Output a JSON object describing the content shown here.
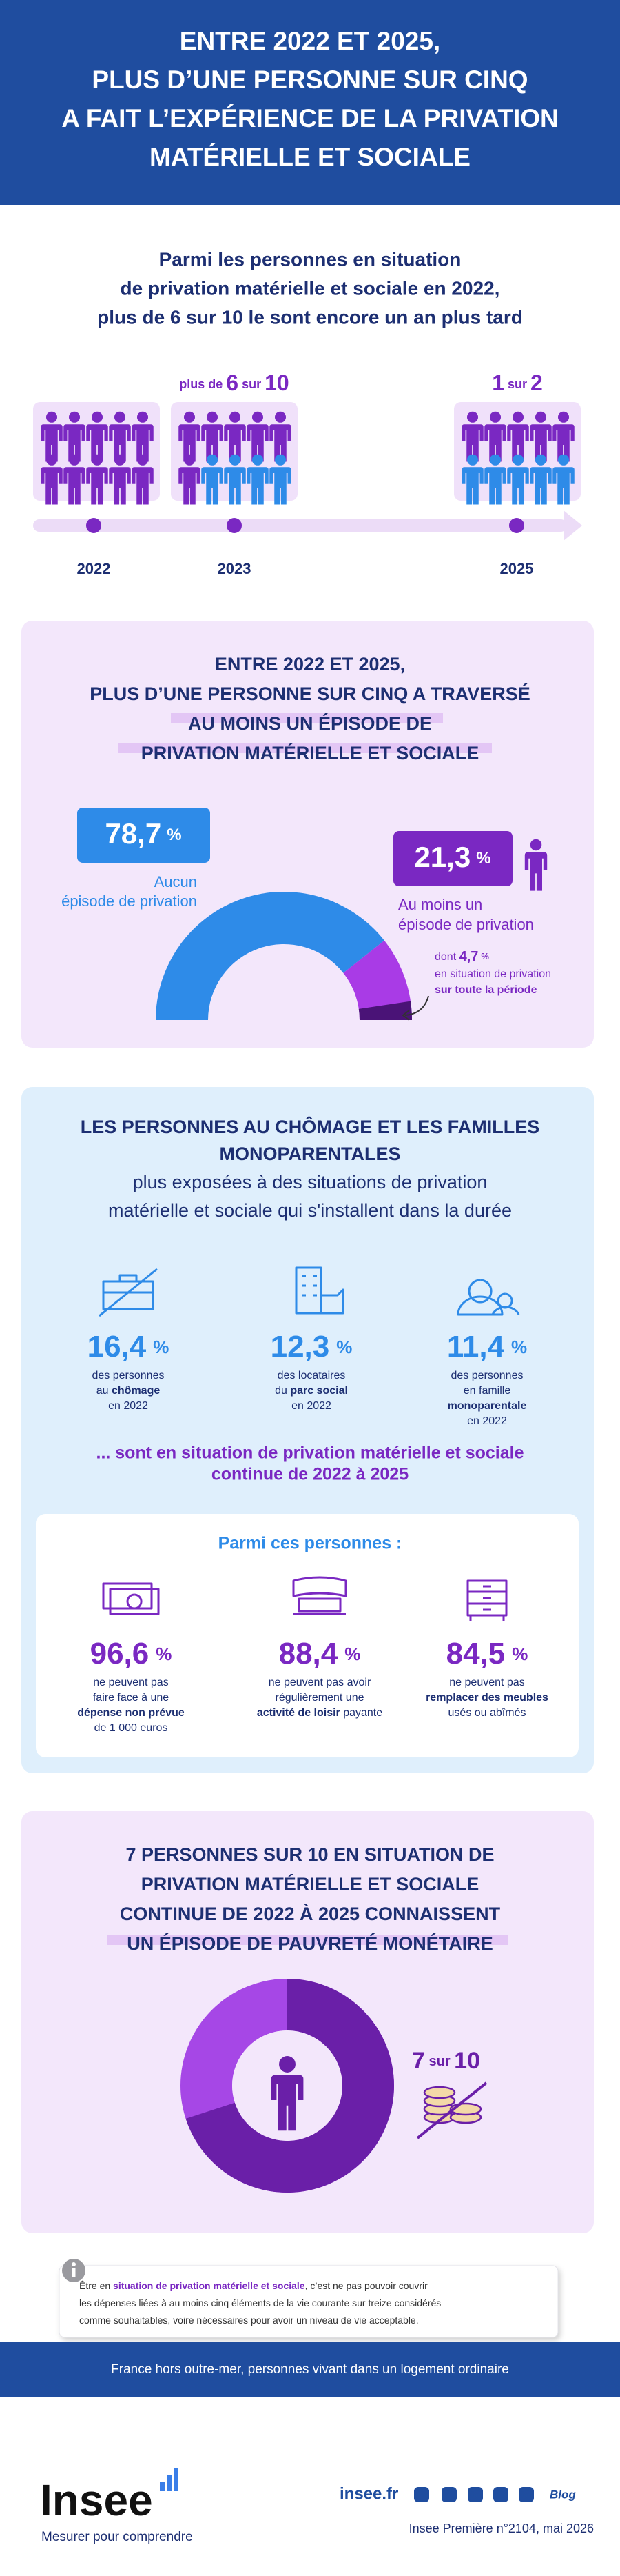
{
  "header": {
    "title": [
      "ENTRE 2022 ET 2025,",
      "PLUS D’UNE PERSONNE SUR CINQ",
      "A FAIT L’EXPÉRIENCE DE LA PRIVATION",
      "MATÉRIELLE ET SOCIALE"
    ]
  },
  "persistence": {
    "title": [
      "Parmi les personnes en situation",
      "de privation matérielle et sociale en 2022,",
      "plus de 6 sur 10 le sont encore un an plus tard"
    ],
    "groups": [
      {
        "year": "2022"
      },
      {
        "year": "2023",
        "label": [
          {
            "text": "plus de "
          },
          {
            "text": "6",
            "big": true
          },
          {
            "text": " sur "
          },
          {
            "text": "10",
            "big": true
          }
        ]
      },
      {
        "year": "2025",
        "label": [
          {
            "text": "1",
            "big": true
          },
          {
            "text": " sur "
          },
          {
            "text": "2",
            "big": true
          }
        ]
      }
    ]
  },
  "episode": {
    "title": [
      "ENTRE 2022 ET 2025,",
      "PLUS D’UNE PERSONNE SUR CINQ A TRAVERSÉ",
      "AU MOINS UN ÉPISODE DE",
      "PRIVATION MATÉRIELLE ET SOCIALE"
    ],
    "none": {
      "value": 78.7,
      "label": "78,7",
      "unit": "%",
      "text": [
        "Aucun",
        "épisode de privation"
      ]
    },
    "some": {
      "value": 21.3,
      "label": "21,3",
      "unit": "%",
      "text": [
        "Au moins un",
        "épisode de privation"
      ]
    },
    "whole": {
      "prefix": "dont ",
      "value": 4.7,
      "label": "4,7",
      "unit": "%",
      "text": [
        "en situation de privation",
        "sur toute la période"
      ]
    }
  },
  "exposure": {
    "title": [
      "LES PERSONNES AU CHÔMAGE ET LES FAMILLES",
      "MONOPARENTALES"
    ],
    "subtitle": [
      "plus exposées à des situations de privation",
      "matérielle et sociale qui s'installent dans la durée"
    ],
    "stats": [
      {
        "value": "16,4",
        "unit": "%",
        "lines": [
          [
            {
              "text": "des personnes"
            }
          ],
          [
            {
              "text": "au "
            },
            {
              "text": "chômage",
              "bold": true
            }
          ],
          [
            {
              "text": "en 2022"
            }
          ]
        ]
      },
      {
        "value": "12,3",
        "unit": "%",
        "lines": [
          [
            {
              "text": "des locataires"
            }
          ],
          [
            {
              "text": "du "
            },
            {
              "text": "parc social",
              "bold": true
            }
          ],
          [
            {
              "text": "en 2022"
            }
          ]
        ]
      },
      {
        "value": "11,4",
        "unit": "%",
        "lines": [
          [
            {
              "text": "des personnes"
            }
          ],
          [
            {
              "text": "en famille"
            }
          ],
          [
            {
              "text": "monoparentale",
              "bold": true
            }
          ],
          [
            {
              "text": "en 2022"
            }
          ]
        ]
      }
    ],
    "continuation": [
      "... sont en situation de privation matérielle et sociale",
      "continue de 2022 à 2025"
    ],
    "among": {
      "title": "Parmi ces personnes :",
      "stats": [
        {
          "value": "96,6",
          "unit": "%",
          "lines": [
            [
              {
                "text": "ne peuvent pas"
              }
            ],
            [
              {
                "text": "faire face à une"
              }
            ],
            [
              {
                "text": "dépense non prévue",
                "bold": true
              }
            ],
            [
              {
                "text": "de 1 000 euros"
              }
            ]
          ]
        },
        {
          "value": "88,4",
          "unit": "%",
          "lines": [
            [
              {
                "text": "ne peuvent pas avoir"
              }
            ],
            [
              {
                "text": "régulièrement une"
              }
            ],
            [
              {
                "text": "activité de loisir",
                "bold": true
              },
              {
                "text": " payante"
              }
            ]
          ]
        },
        {
          "value": "84,5",
          "unit": "%",
          "lines": [
            [
              {
                "text": "ne peuvent pas"
              }
            ],
            [
              {
                "text": "remplacer des meubles",
                "bold": true
              }
            ],
            [
              {
                "text": "usés ou abîmés"
              }
            ]
          ]
        }
      ]
    }
  },
  "monetary": {
    "title": [
      "7 PERSONNES SUR 10 EN SITUATION DE",
      "PRIVATION MATÉRIELLE ET SOCIALE",
      "CONTINUE DE 2022 À 2025 CONNAISSENT",
      "UN ÉPISODE DE PAUVRETÉ MONÉTAIRE"
    ],
    "count": 7,
    "sur": " sur ",
    "total": 10
  },
  "note": {
    "lines": [
      [
        {
          "text": "Être en "
        },
        {
          "text": "situation de privation matérielle et sociale",
          "bold": true
        },
        {
          "text": ", c’est ne pas pouvoir couvrir"
        }
      ],
      [
        {
          "text": "les dépenses liées à au moins cinq éléments de la vie courante sur treize considérés"
        }
      ],
      [
        {
          "text": "comme souhaitables, voire nécessaires pour avoir un niveau de vie acceptable."
        }
      ]
    ]
  },
  "footer": {
    "scope": "France hors outre-mer, personnes vivant dans un logement ordinaire",
    "brand": "Insee",
    "tagline": "Mesurer pour comprendre",
    "site": "insee.fr",
    "blog": "Blog",
    "source": "Insee Première n°2104, mai 2026"
  }
}
